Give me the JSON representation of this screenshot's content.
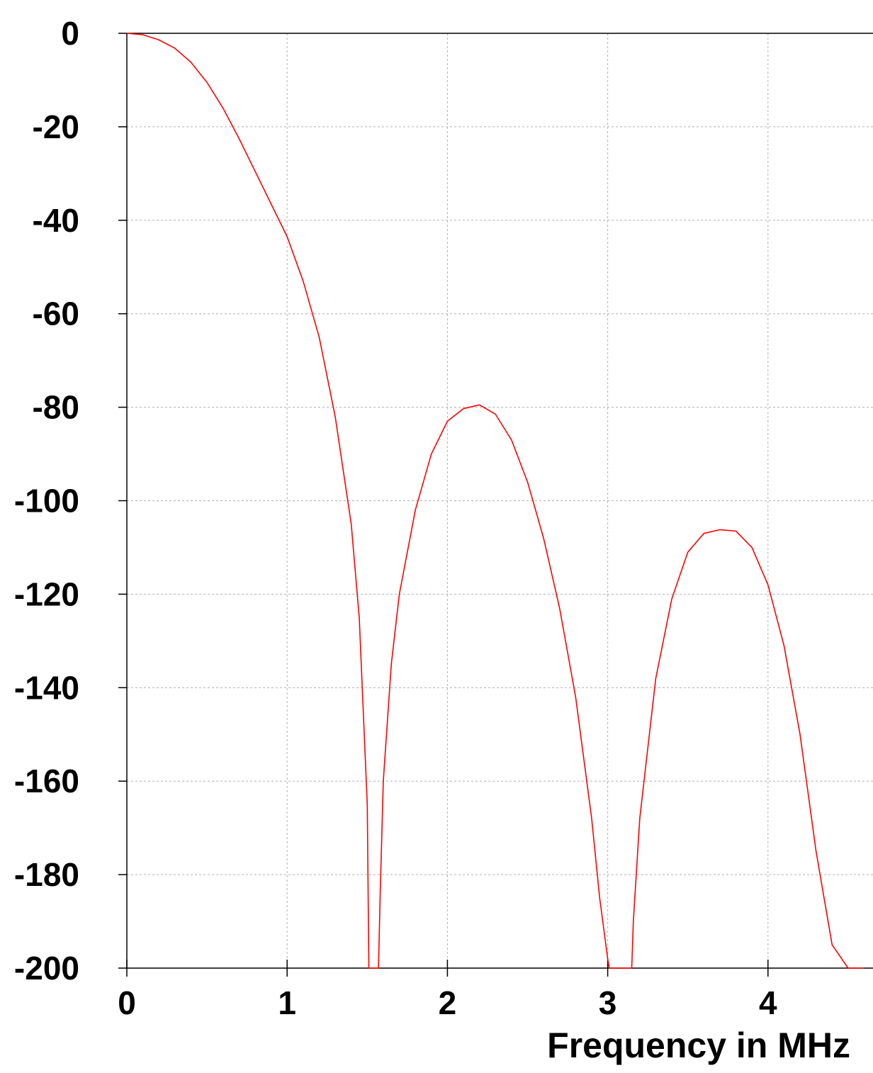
{
  "chart_data": {
    "type": "line",
    "title": "",
    "xlabel": "Frequency in MHz",
    "ylabel": "",
    "xlim": [
      0,
      4.6
    ],
    "ylim": [
      -200,
      0
    ],
    "x_ticks": [
      0,
      1,
      2,
      3,
      4
    ],
    "x_tick_labels": [
      "0",
      "1",
      "2",
      "3",
      "4"
    ],
    "y_ticks": [
      0,
      -20,
      -40,
      -60,
      -80,
      -100,
      -120,
      -140,
      -160,
      -180,
      -200
    ],
    "y_tick_labels": [
      "0",
      "-20",
      "-40",
      "-60",
      "-80",
      "-100",
      "-120",
      "-140",
      "-160",
      "-180",
      "-200"
    ],
    "grid": true,
    "series_color": "#ff0000",
    "series": [
      {
        "x": [
          0,
          0.1,
          0.2,
          0.3,
          0.4,
          0.5,
          0.6,
          0.7,
          0.8,
          0.9,
          1.0,
          1.1,
          1.2,
          1.3,
          1.4,
          1.45,
          1.5,
          1.51,
          1.57,
          1.58,
          1.6,
          1.65,
          1.7,
          1.8,
          1.9,
          2.0,
          2.1,
          2.2,
          2.3,
          2.4,
          2.5,
          2.6,
          2.7,
          2.8,
          2.9,
          2.95,
          3.0,
          3.01,
          3.15,
          3.16,
          3.2,
          3.3,
          3.4,
          3.5,
          3.6,
          3.7,
          3.8,
          3.9,
          4.0,
          4.1,
          4.2,
          4.3,
          4.4,
          4.5,
          4.52,
          4.6
        ],
        "y": [
          0,
          -0.3,
          -1.4,
          -3.2,
          -6.2,
          -10.5,
          -16,
          -22.5,
          -29.5,
          -36.5,
          -43.5,
          -53,
          -65,
          -82,
          -105,
          -125,
          -165,
          -200,
          -200,
          -185,
          -160,
          -135,
          -120,
          -102,
          -90,
          -83,
          -80.3,
          -79.5,
          -81.5,
          -87,
          -96,
          -108,
          -123,
          -142,
          -168,
          -185,
          -198,
          -200,
          -200,
          -190,
          -168,
          -138,
          -121,
          -111,
          -107,
          -106.2,
          -106.5,
          -110,
          -118,
          -131,
          -150,
          -175,
          -195,
          -200,
          -200,
          -200
        ]
      }
    ]
  }
}
